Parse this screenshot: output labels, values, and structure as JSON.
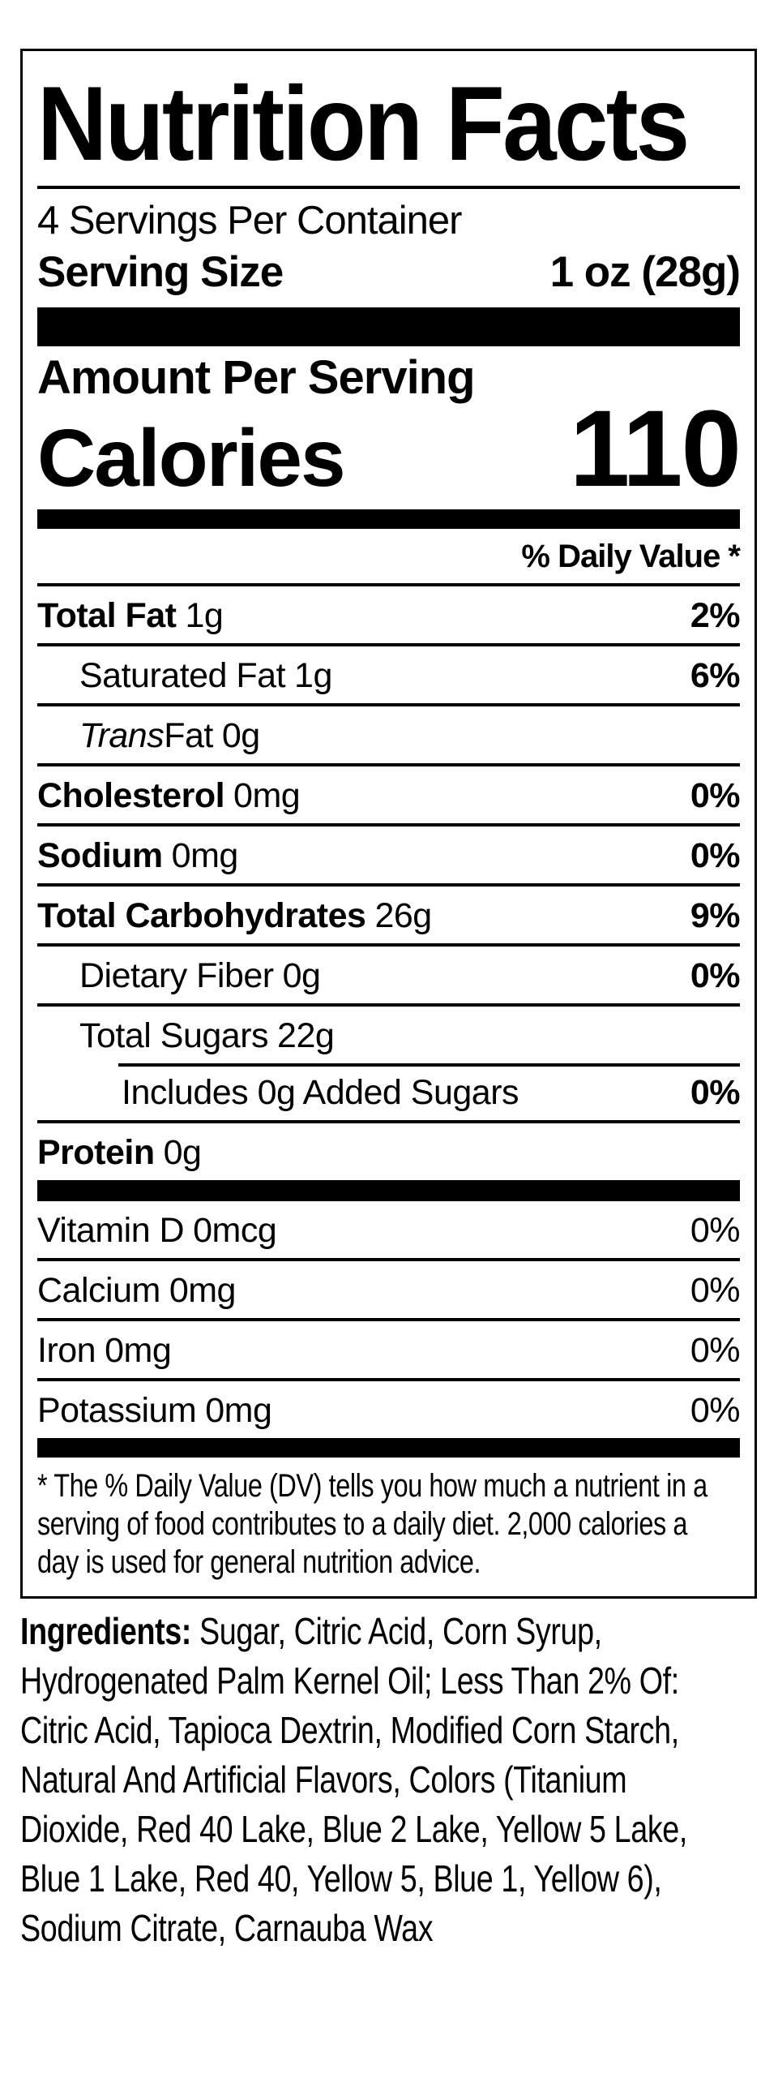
{
  "colors": {
    "text": "#000000",
    "background": "#ffffff"
  },
  "label": {
    "title": "Nutrition Facts",
    "servings_per_container": "4 Servings Per Container",
    "serving_size_label": "Serving Size",
    "serving_size_value": "1 oz (28g)",
    "amount_per_serving": "Amount Per Serving",
    "calories_label": "Calories",
    "calories_value": "110",
    "daily_value_header": "% Daily Value *",
    "main_rows": [
      {
        "name": "Total Fat",
        "amount": "1g",
        "dv": "2%",
        "bold": true,
        "dv_bold": true,
        "indent": 0
      },
      {
        "name": "Saturated Fat",
        "amount": "1g",
        "dv": "6%",
        "dv_bold": true,
        "indent": 1
      },
      {
        "name": "Trans",
        "name2": " Fat",
        "amount": "0g",
        "dv": "",
        "italic": true,
        "indent": 1
      },
      {
        "name": "Cholesterol",
        "amount": "0mg",
        "dv": "0%",
        "bold": true,
        "dv_bold": true,
        "indent": 0
      },
      {
        "name": "Sodium",
        "amount": "0mg",
        "dv": "0%",
        "bold": true,
        "dv_bold": true,
        "indent": 0
      },
      {
        "name": "Total Carbohydrates",
        "amount": "26g",
        "dv": "9%",
        "bold": true,
        "dv_bold": true,
        "indent": 0
      },
      {
        "name": "Dietary Fiber",
        "amount": "0g",
        "dv": "0%",
        "dv_bold": true,
        "indent": 1
      },
      {
        "name": "Total Sugars",
        "amount": "22g",
        "dv": "",
        "indent": 1
      },
      {
        "name": "Includes 0g Added Sugars",
        "amount": "",
        "dv": "0%",
        "dv_bold": true,
        "indent": 2,
        "sep_indent": true
      },
      {
        "name": "Protein",
        "amount": "0g",
        "dv": "",
        "bold": true,
        "indent": 0
      }
    ],
    "vitamin_rows": [
      {
        "name": "Vitamin D",
        "amount": "0mcg",
        "dv": "0%",
        "no_border": true,
        "indent": 0
      },
      {
        "name": "Calcium",
        "amount": "0mg",
        "dv": "0%",
        "indent": 0
      },
      {
        "name": "Iron",
        "amount": "0mg",
        "dv": "0%",
        "indent": 0
      },
      {
        "name": "Potassium",
        "amount": "0mg",
        "dv": "0%",
        "indent": 0
      }
    ],
    "footnote": "* The % Daily Value (DV) tells you how much a nutrient in a\nserving of food contributes to a daily diet. 2,000 calories a\nday is used for general nutrition advice."
  },
  "ingredients": {
    "intro": "Ingredients:",
    "text": " Sugar, Citric Acid, Corn Syrup,\nHydrogenated Palm Kernel Oil; Less Than 2% Of:\nCitric Acid, Tapioca Dextrin, Modified Corn Starch,\nNatural And Artificial Flavors, Colors (Titanium\nDioxide, Red 40 Lake, Blue 2 Lake, Yellow 5 Lake,\nBlue 1 Lake, Red 40, Yellow 5, Blue 1, Yellow 6),\nSodium Citrate, Carnauba Wax"
  }
}
